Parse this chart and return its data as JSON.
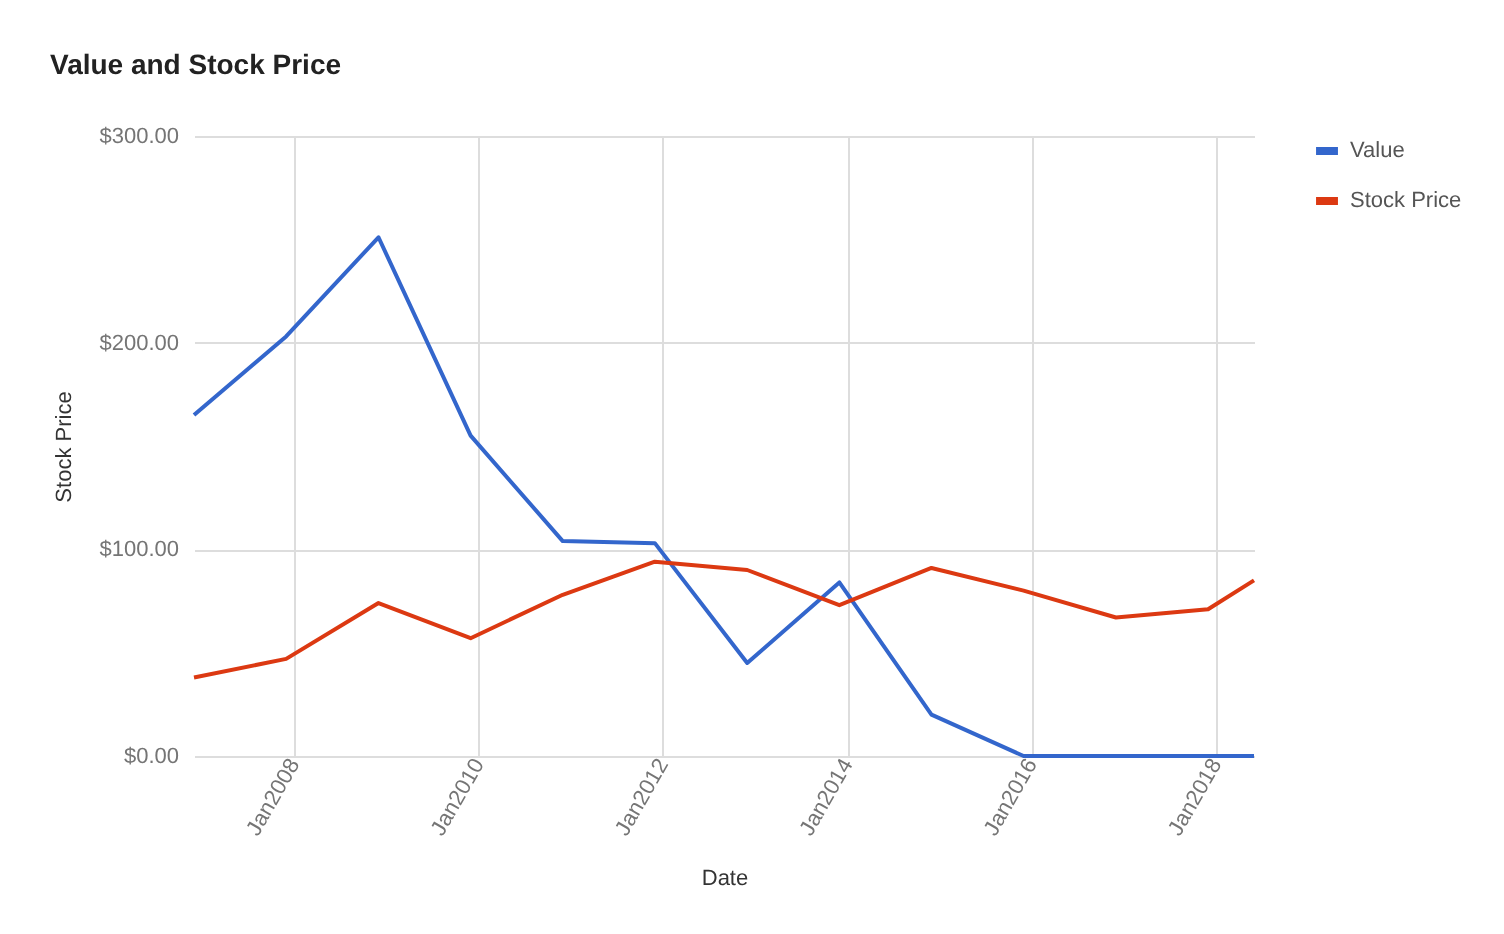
{
  "chart_data": {
    "type": "line",
    "title": "Value and Stock Price",
    "xlabel": "Date",
    "ylabel": "Stock Price",
    "x": [
      "2006-12",
      "2007-12",
      "2008-12",
      "2009-12",
      "2010-12",
      "2011-12",
      "2012-12",
      "2013-12",
      "2014-12",
      "2015-12",
      "2016-12",
      "2017-12",
      "2018-06"
    ],
    "series": [
      {
        "name": "Value",
        "color": "#3366cc",
        "values": [
          165,
          203,
          251,
          155,
          104,
          103,
          45,
          84,
          20,
          0,
          0,
          0,
          0
        ]
      },
      {
        "name": "Stock Price",
        "color": "#dc3912",
        "values": [
          38,
          47,
          74,
          57,
          78,
          94,
          90,
          73,
          91,
          80,
          67,
          71,
          85
        ]
      }
    ],
    "xlim": [
      "2006-12",
      "2018-06"
    ],
    "xticks": [
      {
        "value": "2008-01",
        "label": "Jan2008"
      },
      {
        "value": "2010-01",
        "label": "Jan2010"
      },
      {
        "value": "2012-01",
        "label": "Jan2012"
      },
      {
        "value": "2014-01",
        "label": "Jan2014"
      },
      {
        "value": "2016-01",
        "label": "Jan2016"
      },
      {
        "value": "2018-01",
        "label": "Jan2018"
      }
    ],
    "ylim": [
      0,
      300
    ],
    "yticks": [
      {
        "value": 0,
        "label": "$0.00"
      },
      {
        "value": 100,
        "label": "$100.00"
      },
      {
        "value": 200,
        "label": "$200.00"
      },
      {
        "value": 300,
        "label": "$300.00"
      }
    ],
    "grid": true,
    "legend": "right",
    "line_style": "solid",
    "marker": "none"
  }
}
